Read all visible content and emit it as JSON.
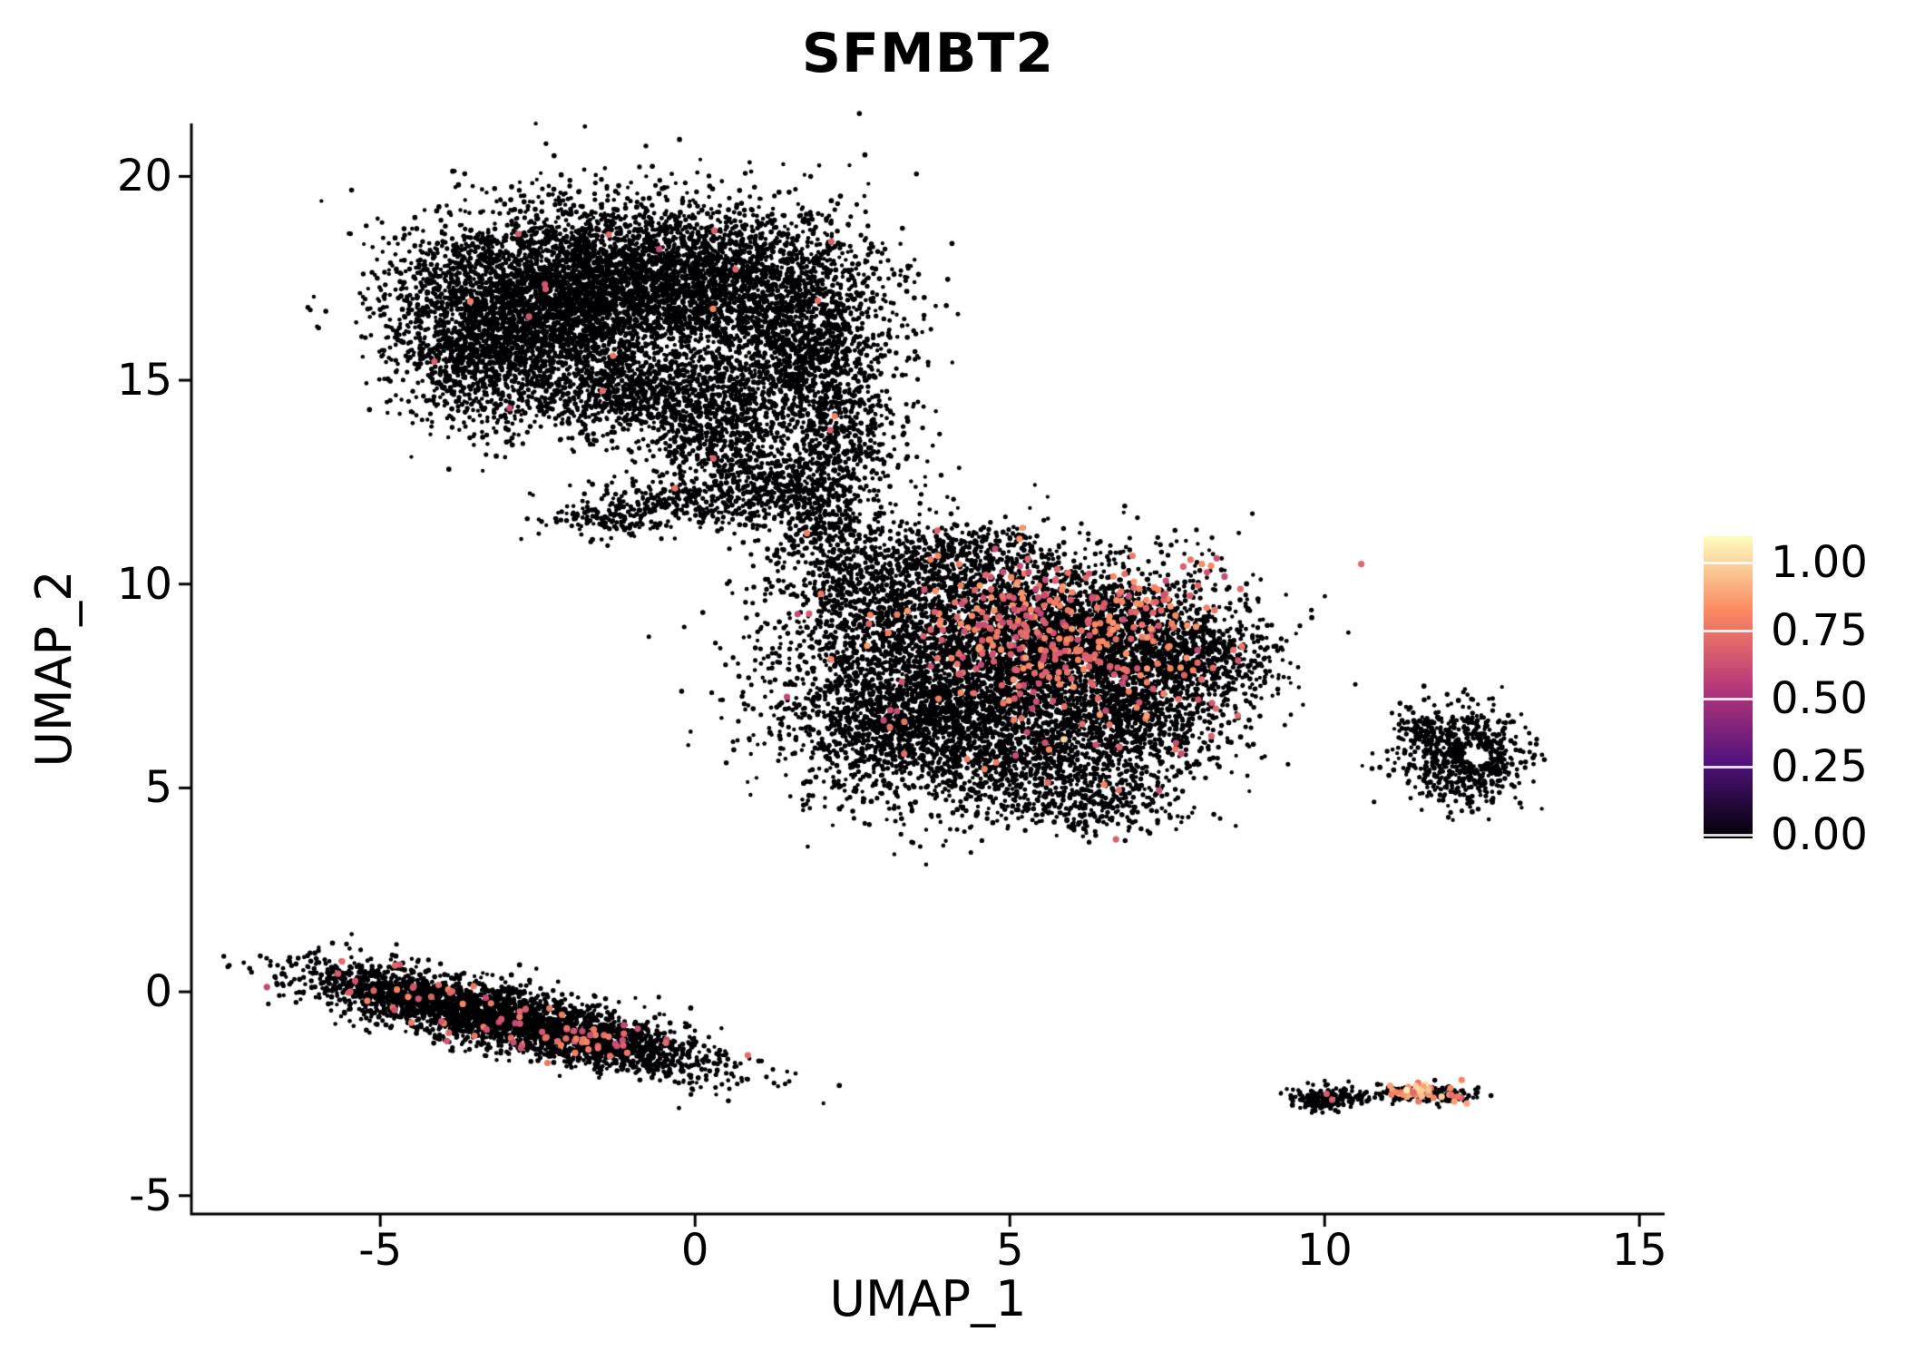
{
  "chart_data": {
    "type": "scatter",
    "title": "SFMBT2",
    "xlabel": "UMAP_1",
    "ylabel": "UMAP_2",
    "xlim": [
      -8.0,
      15.4
    ],
    "ylim": [
      -5.45,
      21.3
    ],
    "grid": false,
    "background": "#ffffff",
    "axis_color": "#000000",
    "point_color_zero": "#000004",
    "x_ticks": [
      {
        "value": -5,
        "label": "-5"
      },
      {
        "value": 0,
        "label": "0"
      },
      {
        "value": 5,
        "label": "5"
      },
      {
        "value": 10,
        "label": "10"
      },
      {
        "value": 15,
        "label": "15"
      }
    ],
    "y_ticks": [
      {
        "value": -5,
        "label": "-5"
      },
      {
        "value": 0,
        "label": "0"
      },
      {
        "value": 5,
        "label": "5"
      },
      {
        "value": 10,
        "label": "10"
      },
      {
        "value": 15,
        "label": "15"
      },
      {
        "value": 20,
        "label": "20"
      }
    ],
    "colorbar": {
      "position": "right",
      "tick_labels": [
        {
          "value": 1.0,
          "label": "1.00"
        },
        {
          "value": 0.75,
          "label": "0.75"
        },
        {
          "value": 0.5,
          "label": "0.50"
        },
        {
          "value": 0.25,
          "label": "0.25"
        },
        {
          "value": 0.0,
          "label": "0.00"
        }
      ],
      "colormap": "magma",
      "colormap_stops": [
        {
          "v": 0.0,
          "c": "#000004"
        },
        {
          "v": 0.25,
          "c": "#51127c"
        },
        {
          "v": 0.5,
          "c": "#b73779"
        },
        {
          "v": 0.75,
          "c": "#fb8861"
        },
        {
          "v": 1.0,
          "c": "#fcfdbf"
        }
      ]
    },
    "seed": 42,
    "clusters": [
      {
        "name": "upper-left-large",
        "expr_frac": 0.002,
        "expr_vmin": 0.55,
        "expr_vmax": 0.75,
        "blobs": [
          {
            "cx": -2.6,
            "cy": 17.0,
            "sx": 1.1,
            "sy": 1.1,
            "n": 2600
          },
          {
            "cx": -0.6,
            "cy": 17.6,
            "sx": 1.1,
            "sy": 0.9,
            "n": 2200
          },
          {
            "cx": 1.3,
            "cy": 16.8,
            "sx": 0.9,
            "sy": 1.2,
            "n": 1600
          },
          {
            "cx": -3.4,
            "cy": 15.6,
            "sx": 0.7,
            "sy": 0.9,
            "n": 900
          },
          {
            "cx": -1.2,
            "cy": 14.9,
            "sx": 0.9,
            "sy": 0.7,
            "n": 900
          },
          {
            "cx": 0.3,
            "cy": 14.0,
            "sx": 0.7,
            "sy": 0.8,
            "n": 700
          },
          {
            "cx": 2.0,
            "cy": 15.0,
            "sx": 0.6,
            "sy": 1.0,
            "n": 600
          },
          {
            "cx": 2.3,
            "cy": 13.2,
            "sx": 0.5,
            "sy": 0.7,
            "n": 350
          },
          {
            "cx": 0.9,
            "cy": 12.4,
            "sx": 0.6,
            "sy": 0.5,
            "n": 260
          },
          {
            "cx": -0.3,
            "cy": 12.0,
            "sx": 0.8,
            "sy": 0.35,
            "n": 220
          },
          {
            "cx": -1.35,
            "cy": 11.6,
            "sx": 0.45,
            "sy": 0.2,
            "n": 130
          },
          {
            "cx": 1.9,
            "cy": 11.5,
            "sx": 0.4,
            "sy": 0.6,
            "n": 100
          }
        ]
      },
      {
        "name": "central-large",
        "expr_frac": 0.004,
        "expr_vmin": 0.55,
        "expr_vmax": 0.75,
        "blobs": [
          {
            "cx": 4.3,
            "cy": 8.2,
            "sx": 1.5,
            "sy": 1.3,
            "n": 2800
          },
          {
            "cx": 6.3,
            "cy": 8.6,
            "sx": 1.2,
            "sy": 1.0,
            "n": 2000
          },
          {
            "cx": 3.2,
            "cy": 6.6,
            "sx": 0.9,
            "sy": 1.0,
            "n": 1100
          },
          {
            "cx": 5.3,
            "cy": 5.8,
            "sx": 1.2,
            "sy": 0.8,
            "n": 1000
          },
          {
            "cx": 7.0,
            "cy": 6.8,
            "sx": 0.8,
            "sy": 0.8,
            "n": 700
          },
          {
            "cx": 8.1,
            "cy": 8.2,
            "sx": 0.55,
            "sy": 0.45,
            "n": 400
          },
          {
            "cx": 2.8,
            "cy": 9.9,
            "sx": 0.75,
            "sy": 0.7,
            "n": 550
          },
          {
            "cx": 4.3,
            "cy": 10.7,
            "sx": 0.8,
            "sy": 0.45,
            "n": 350
          },
          {
            "cx": 2.1,
            "cy": 11.5,
            "sx": 0.45,
            "sy": 0.5,
            "n": 160
          },
          {
            "cx": 1.6,
            "cy": 12.4,
            "sx": 0.35,
            "sy": 0.45,
            "n": 90
          },
          {
            "cx": 6.4,
            "cy": 4.6,
            "sx": 0.7,
            "sy": 0.4,
            "n": 220
          }
        ]
      },
      {
        "name": "right-ring",
        "expr_frac": 0,
        "expr_vmin": 0,
        "expr_vmax": 0,
        "blobs": [
          {
            "cx": 12.2,
            "cy": 5.8,
            "sx": 0.5,
            "sy": 0.55,
            "n": 680,
            "hole": {
              "cx": 12.42,
              "cy": 5.78,
              "r": 0.21
            }
          },
          {
            "cx": 11.55,
            "cy": 6.45,
            "sx": 0.22,
            "sy": 0.18,
            "n": 60
          }
        ]
      },
      {
        "name": "lower-left-streak",
        "expr_frac": 0.025,
        "expr_vmin": 0.55,
        "expr_vmax": 0.75,
        "blobs": [
          {
            "cx": -3.0,
            "cy": -0.65,
            "sx": 1.55,
            "sy": 0.36,
            "rot": -0.33,
            "n": 2400
          },
          {
            "cx": -4.6,
            "cy": -0.1,
            "sx": 0.8,
            "sy": 0.3,
            "rot": -0.3,
            "n": 500
          },
          {
            "cx": -1.4,
            "cy": -1.3,
            "sx": 0.8,
            "sy": 0.3,
            "rot": -0.3,
            "n": 450
          }
        ]
      },
      {
        "name": "lower-right-black",
        "expr_frac": 0.01,
        "expr_vmin": 0.6,
        "expr_vmax": 0.7,
        "blobs": [
          {
            "cx": 10.0,
            "cy": -2.62,
            "sx": 0.26,
            "sy": 0.16,
            "n": 170
          },
          {
            "cx": 10.55,
            "cy": -2.55,
            "sx": 0.07,
            "sy": 0.05,
            "n": 12
          }
        ]
      },
      {
        "name": "lower-right-expressing",
        "expr_frac": 0.12,
        "expr_vmin": 0.6,
        "expr_vmax": 0.9,
        "blobs": [
          {
            "cx": 11.55,
            "cy": -2.5,
            "sx": 0.4,
            "sy": 0.12,
            "n": 150
          },
          {
            "cx": 12.05,
            "cy": -2.55,
            "sx": 0.1,
            "sy": 0.06,
            "n": 25
          }
        ]
      }
    ],
    "expr_overlays": [
      {
        "cx": 5.9,
        "cy": 8.9,
        "sx": 1.25,
        "sy": 0.95,
        "n": 330,
        "vmin": 0.55,
        "vmax": 0.8
      },
      {
        "cx": 5.4,
        "cy": 6.1,
        "sx": 1.5,
        "sy": 0.9,
        "n": 22,
        "vmin": 0.55,
        "vmax": 0.75
      },
      {
        "cx": 11.42,
        "cy": -2.46,
        "sx": 0.2,
        "sy": 0.08,
        "n": 40,
        "vmin": 0.65,
        "vmax": 1.0
      },
      {
        "cx": 6.7,
        "cy": 3.75,
        "sx": 0.02,
        "sy": 0.02,
        "n": 1,
        "vmin": 0.62,
        "vmax": 0.68
      },
      {
        "cx": 5.9,
        "cy": 6.2,
        "sx": 0.02,
        "sy": 0.02,
        "n": 1,
        "vmin": 0.9,
        "vmax": 0.96
      },
      {
        "cx": 8.2,
        "cy": 7.3,
        "sx": 0.15,
        "sy": 0.3,
        "n": 3,
        "vmin": 0.58,
        "vmax": 0.7
      }
    ]
  }
}
